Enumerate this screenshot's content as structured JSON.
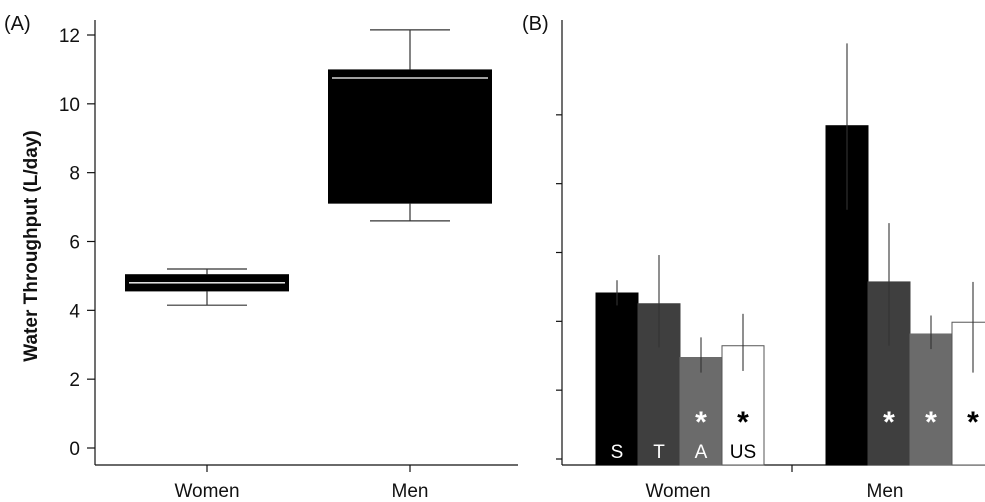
{
  "chart_data": [
    {
      "panel_label": "(A)",
      "type": "box",
      "ylabel": "Water Throughput (L/day)",
      "ylim": [
        -0.5,
        12.5
      ],
      "yticks": [
        "0",
        "2",
        "4",
        "6",
        "8",
        "10",
        "12"
      ],
      "categories": [
        "Women",
        "Men"
      ],
      "boxes": [
        {
          "category": "Women",
          "whisker_low": 4.15,
          "q1": 4.55,
          "median": 4.8,
          "q3": 5.05,
          "whisker_high": 5.2
        },
        {
          "category": "Men",
          "whisker_low": 6.6,
          "q1": 7.1,
          "median": 10.75,
          "q3": 11.0,
          "whisker_high": 12.15
        }
      ]
    },
    {
      "panel_label": "(B)",
      "type": "bar",
      "ylim": [
        -0.5,
        12.5
      ],
      "categories": [
        "Women",
        "Men"
      ],
      "series": [
        {
          "name": "S",
          "color": "#000000",
          "values": [
            4.62,
            9.6
          ],
          "err_low": [
            4.25,
            7.1
          ],
          "err_high": [
            5.0,
            12.05
          ]
        },
        {
          "name": "T",
          "color": "#3f3f3f",
          "values": [
            4.3,
            4.95
          ],
          "err_low": [
            3.0,
            3.05
          ],
          "err_high": [
            5.75,
            6.7
          ]
        },
        {
          "name": "A",
          "color": "#6b6b6b",
          "values": [
            2.7,
            3.4
          ],
          "err_low": [
            2.25,
            2.95
          ],
          "err_high": [
            3.3,
            3.95
          ]
        },
        {
          "name": "US",
          "color": "#ffffff",
          "values": [
            3.05,
            3.75
          ],
          "err_low": [
            2.3,
            2.25
          ],
          "err_high": [
            4.0,
            4.95
          ]
        }
      ],
      "annotations": [
        {
          "category": "Women",
          "series": "A",
          "text": "*"
        },
        {
          "category": "Women",
          "series": "US",
          "text": "*"
        },
        {
          "category": "Men",
          "series": "T",
          "text": "*"
        },
        {
          "category": "Men",
          "series": "A",
          "text": "*"
        },
        {
          "category": "Men",
          "series": "US",
          "text": "*"
        }
      ]
    }
  ]
}
